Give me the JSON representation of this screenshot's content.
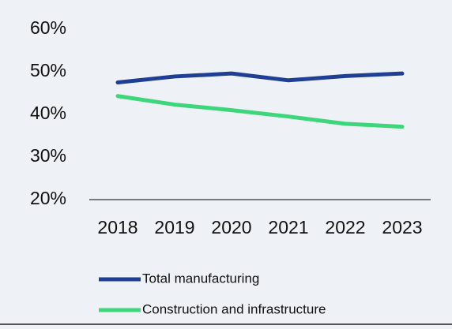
{
  "chart_data": {
    "type": "line",
    "categories": [
      "2018",
      "2019",
      "2020",
      "2021",
      "2022",
      "2023"
    ],
    "series": [
      {
        "name": "Total manufacturing",
        "color": "#1f3f94",
        "values": [
          47.5,
          48.9,
          49.6,
          48.0,
          49.0,
          49.6
        ]
      },
      {
        "name": "Construction and infrastructure",
        "color": "#3dd67a",
        "values": [
          44.3,
          42.3,
          41.0,
          39.5,
          37.8,
          37.1
        ]
      }
    ],
    "ylim": [
      20,
      60
    ],
    "yticks": [
      {
        "value": 20,
        "label": "20%"
      },
      {
        "value": 30,
        "label": "30%"
      },
      {
        "value": 40,
        "label": "40%"
      },
      {
        "value": 50,
        "label": "50%"
      },
      {
        "value": 60,
        "label": "60%"
      }
    ],
    "grid": false,
    "legend": "bottom"
  }
}
